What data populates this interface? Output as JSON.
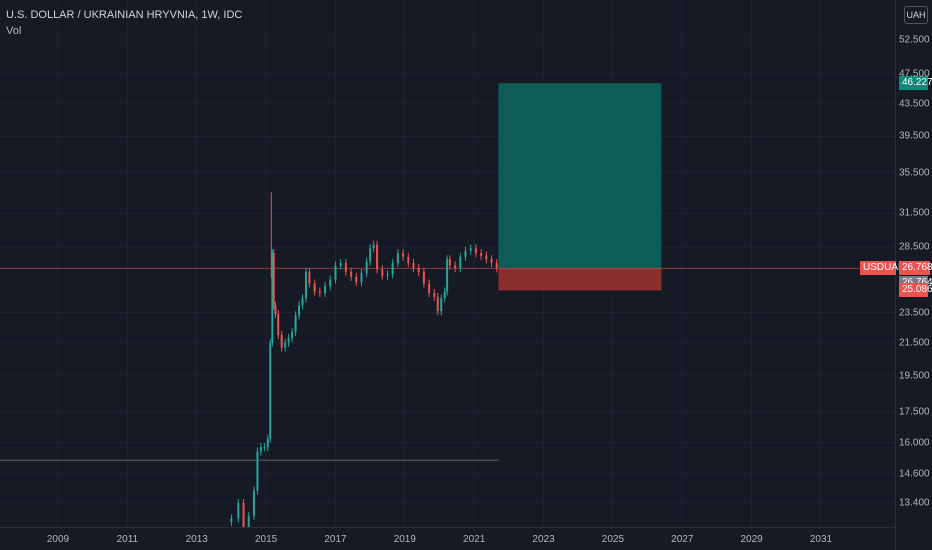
{
  "header": {
    "title": "U.S. DOLLAR / UKRAINIAN HRYVNIA, 1W, IDC",
    "volume_label": "Vol",
    "currency_button": "UAH"
  },
  "price_scale": {
    "ticks": [
      "52.500",
      "47.500",
      "43.500",
      "39.500",
      "35.500",
      "31.500",
      "28.500",
      "23.500",
      "21.500",
      "19.500",
      "17.500",
      "16.000",
      "14.600",
      "13.400"
    ]
  },
  "time_scale": {
    "ticks": [
      "2009",
      "2011",
      "2013",
      "2015",
      "2017",
      "2019",
      "2021",
      "2023",
      "2025",
      "2027",
      "2029",
      "2031"
    ]
  },
  "badges": {
    "target_price": "46.227",
    "symbol_name": "USDUAH",
    "last_price": "26.768",
    "entry_price": "26.764",
    "stop_price": "25.086"
  },
  "colors": {
    "background": "#161a25",
    "up": "#26a69a",
    "down": "#ef5350",
    "profit_zone": "#0d5c55",
    "loss_zone": "#8b2e2e",
    "grid": "#1f2330"
  },
  "chart_data": {
    "type": "candlestick",
    "symbol": "USDUAH",
    "interval": "1W",
    "source": "IDC",
    "x_range": [
      2008,
      2032
    ],
    "y_scale": "log",
    "last_price": 26.768,
    "long_position": {
      "entry": 26.764,
      "target": 46.227,
      "stop": 25.086,
      "start": 2021.7,
      "end": 2026.4
    },
    "horizontal_line": {
      "price": 15.2,
      "until": 2021.7
    },
    "series": [
      {
        "x": 2014.0,
        "y": 12.8
      },
      {
        "x": 2014.2,
        "y": 13.4
      },
      {
        "x": 2014.35,
        "y": 11.8
      },
      {
        "x": 2014.5,
        "y": 12.9
      },
      {
        "x": 2014.65,
        "y": 13.9
      },
      {
        "x": 2014.75,
        "y": 15.6
      },
      {
        "x": 2014.85,
        "y": 15.8
      },
      {
        "x": 2014.95,
        "y": 15.8
      },
      {
        "x": 2015.05,
        "y": 16.2
      },
      {
        "x": 2015.12,
        "y": 21.5
      },
      {
        "x": 2015.18,
        "y": 28.0
      },
      {
        "x": 2015.22,
        "y": 24.0
      },
      {
        "x": 2015.27,
        "y": 23.4
      },
      {
        "x": 2015.35,
        "y": 22.0
      },
      {
        "x": 2015.45,
        "y": 21.2
      },
      {
        "x": 2015.55,
        "y": 21.5
      },
      {
        "x": 2015.65,
        "y": 21.8
      },
      {
        "x": 2015.75,
        "y": 22.2
      },
      {
        "x": 2015.85,
        "y": 23.3
      },
      {
        "x": 2015.95,
        "y": 24.0
      },
      {
        "x": 2016.05,
        "y": 24.5
      },
      {
        "x": 2016.15,
        "y": 26.5
      },
      {
        "x": 2016.25,
        "y": 25.6
      },
      {
        "x": 2016.4,
        "y": 25.0
      },
      {
        "x": 2016.55,
        "y": 24.9
      },
      {
        "x": 2016.7,
        "y": 25.4
      },
      {
        "x": 2016.85,
        "y": 25.9
      },
      {
        "x": 2017.0,
        "y": 27.0
      },
      {
        "x": 2017.15,
        "y": 27.2
      },
      {
        "x": 2017.3,
        "y": 26.5
      },
      {
        "x": 2017.45,
        "y": 26.1
      },
      {
        "x": 2017.6,
        "y": 25.7
      },
      {
        "x": 2017.75,
        "y": 26.4
      },
      {
        "x": 2017.9,
        "y": 27.3
      },
      {
        "x": 2018.0,
        "y": 28.4
      },
      {
        "x": 2018.1,
        "y": 28.7
      },
      {
        "x": 2018.2,
        "y": 26.7
      },
      {
        "x": 2018.35,
        "y": 26.2
      },
      {
        "x": 2018.5,
        "y": 26.3
      },
      {
        "x": 2018.65,
        "y": 27.2
      },
      {
        "x": 2018.8,
        "y": 28.0
      },
      {
        "x": 2018.95,
        "y": 27.7
      },
      {
        "x": 2019.1,
        "y": 27.2
      },
      {
        "x": 2019.25,
        "y": 26.8
      },
      {
        "x": 2019.4,
        "y": 26.5
      },
      {
        "x": 2019.55,
        "y": 25.6
      },
      {
        "x": 2019.7,
        "y": 24.9
      },
      {
        "x": 2019.85,
        "y": 24.6
      },
      {
        "x": 2019.95,
        "y": 23.6
      },
      {
        "x": 2020.05,
        "y": 24.5
      },
      {
        "x": 2020.15,
        "y": 25.0
      },
      {
        "x": 2020.22,
        "y": 27.5
      },
      {
        "x": 2020.3,
        "y": 27.0
      },
      {
        "x": 2020.45,
        "y": 26.8
      },
      {
        "x": 2020.6,
        "y": 27.7
      },
      {
        "x": 2020.75,
        "y": 28.2
      },
      {
        "x": 2020.9,
        "y": 28.4
      },
      {
        "x": 2021.05,
        "y": 28.0
      },
      {
        "x": 2021.2,
        "y": 27.8
      },
      {
        "x": 2021.35,
        "y": 27.5
      },
      {
        "x": 2021.5,
        "y": 27.2
      },
      {
        "x": 2021.65,
        "y": 26.77
      }
    ]
  }
}
